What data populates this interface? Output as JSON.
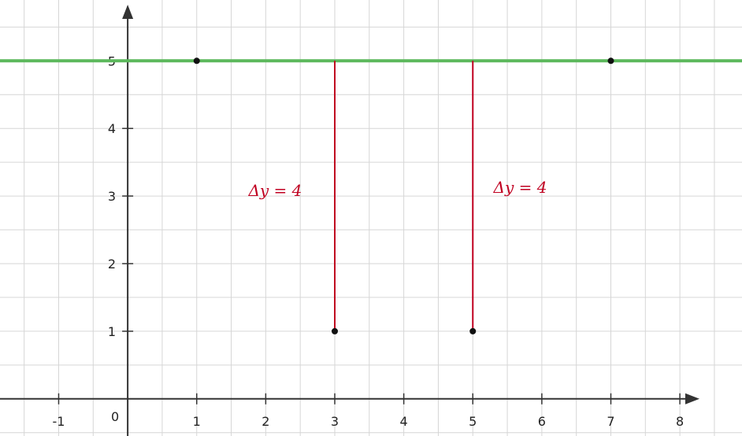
{
  "chart_data": {
    "type": "line",
    "xlim": [
      -1.85,
      8.9
    ],
    "ylim": [
      -0.55,
      5.9
    ],
    "grid": true,
    "x_ticks": [
      -1,
      0,
      1,
      2,
      3,
      4,
      5,
      6,
      7,
      8
    ],
    "x_tick_labels": [
      "-1",
      "0",
      "1",
      "2",
      "3",
      "4",
      "5",
      "6",
      "7",
      "8"
    ],
    "y_ticks": [
      1,
      2,
      3,
      4,
      5
    ],
    "y_tick_labels": [
      "1",
      "2",
      "3",
      "4",
      "5"
    ],
    "series": [
      {
        "type": "line",
        "color": "#5cb85c",
        "x": [
          -1.85,
          8.9
        ],
        "y": [
          5,
          5
        ]
      }
    ],
    "points": [
      {
        "x": 1,
        "y": 5
      },
      {
        "x": 7,
        "y": 5
      },
      {
        "x": 3,
        "y": 1
      },
      {
        "x": 5,
        "y": 1
      }
    ],
    "segments": [
      {
        "x1": 3,
        "y1": 1,
        "x2": 3,
        "y2": 5,
        "color": "#c00020"
      },
      {
        "x1": 5,
        "y1": 1,
        "x2": 5,
        "y2": 5,
        "color": "#c00020"
      }
    ],
    "annotations": [
      {
        "text": "Δy  = 4",
        "x": 1.75,
        "y": 3,
        "color": "#c00020"
      },
      {
        "text": "Δy  = 4",
        "x": 5.3,
        "y": 3.05,
        "color": "#c00020"
      }
    ]
  },
  "colors": {
    "grid": "#d6d6d6",
    "axis": "#333333",
    "line": "#5cb85c",
    "segment": "#c00020",
    "point": "#111111"
  }
}
